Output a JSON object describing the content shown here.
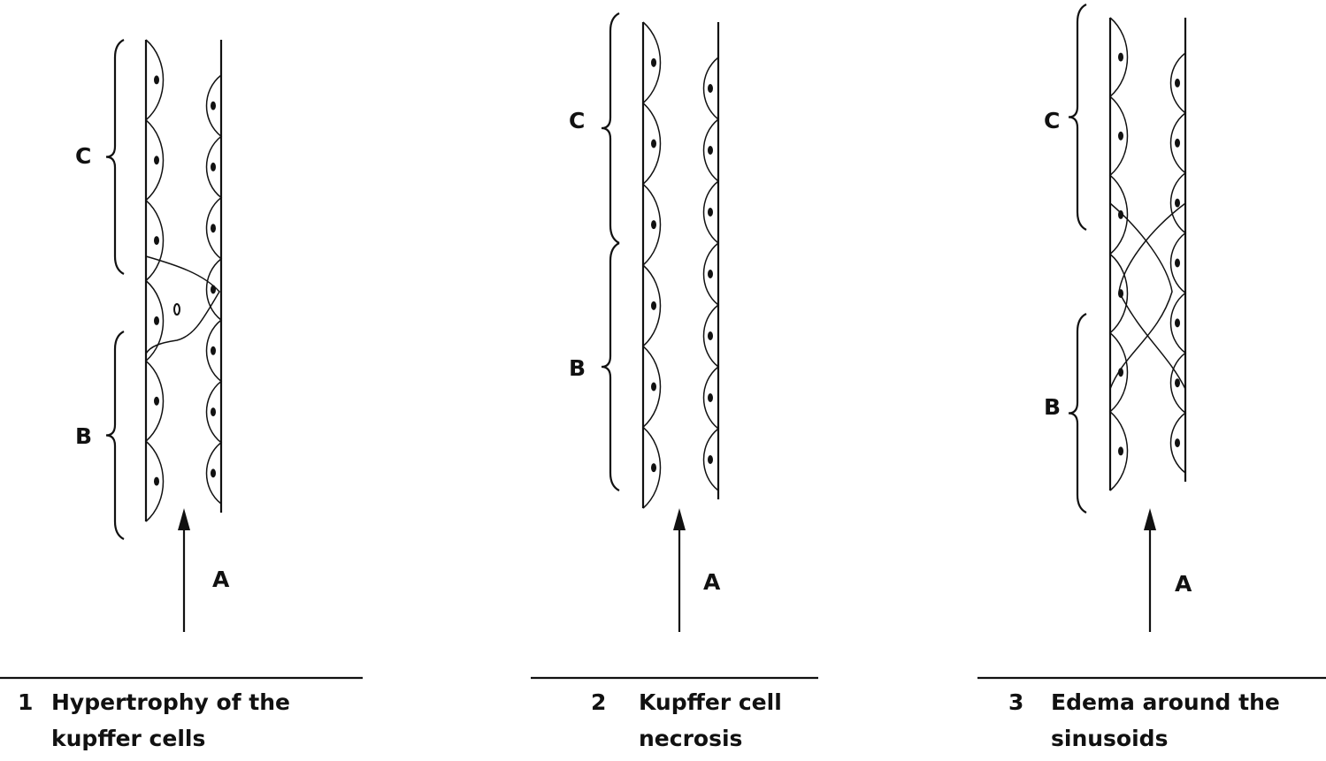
{
  "panels": [
    {
      "labels": {
        "c": "C",
        "b": "B",
        "a": "A"
      },
      "number": "1",
      "caption": [
        "Hypertrophy of the",
        "kupffer cells"
      ]
    },
    {
      "labels": {
        "c": "C",
        "b": "B",
        "a": "A"
      },
      "number": "2",
      "caption": [
        "Kupffer cell",
        "necrosis"
      ]
    },
    {
      "labels": {
        "c": "C",
        "b": "B",
        "a": "A"
      },
      "number": "3",
      "caption": [
        "Edema around the",
        "sinusoids"
      ]
    }
  ]
}
